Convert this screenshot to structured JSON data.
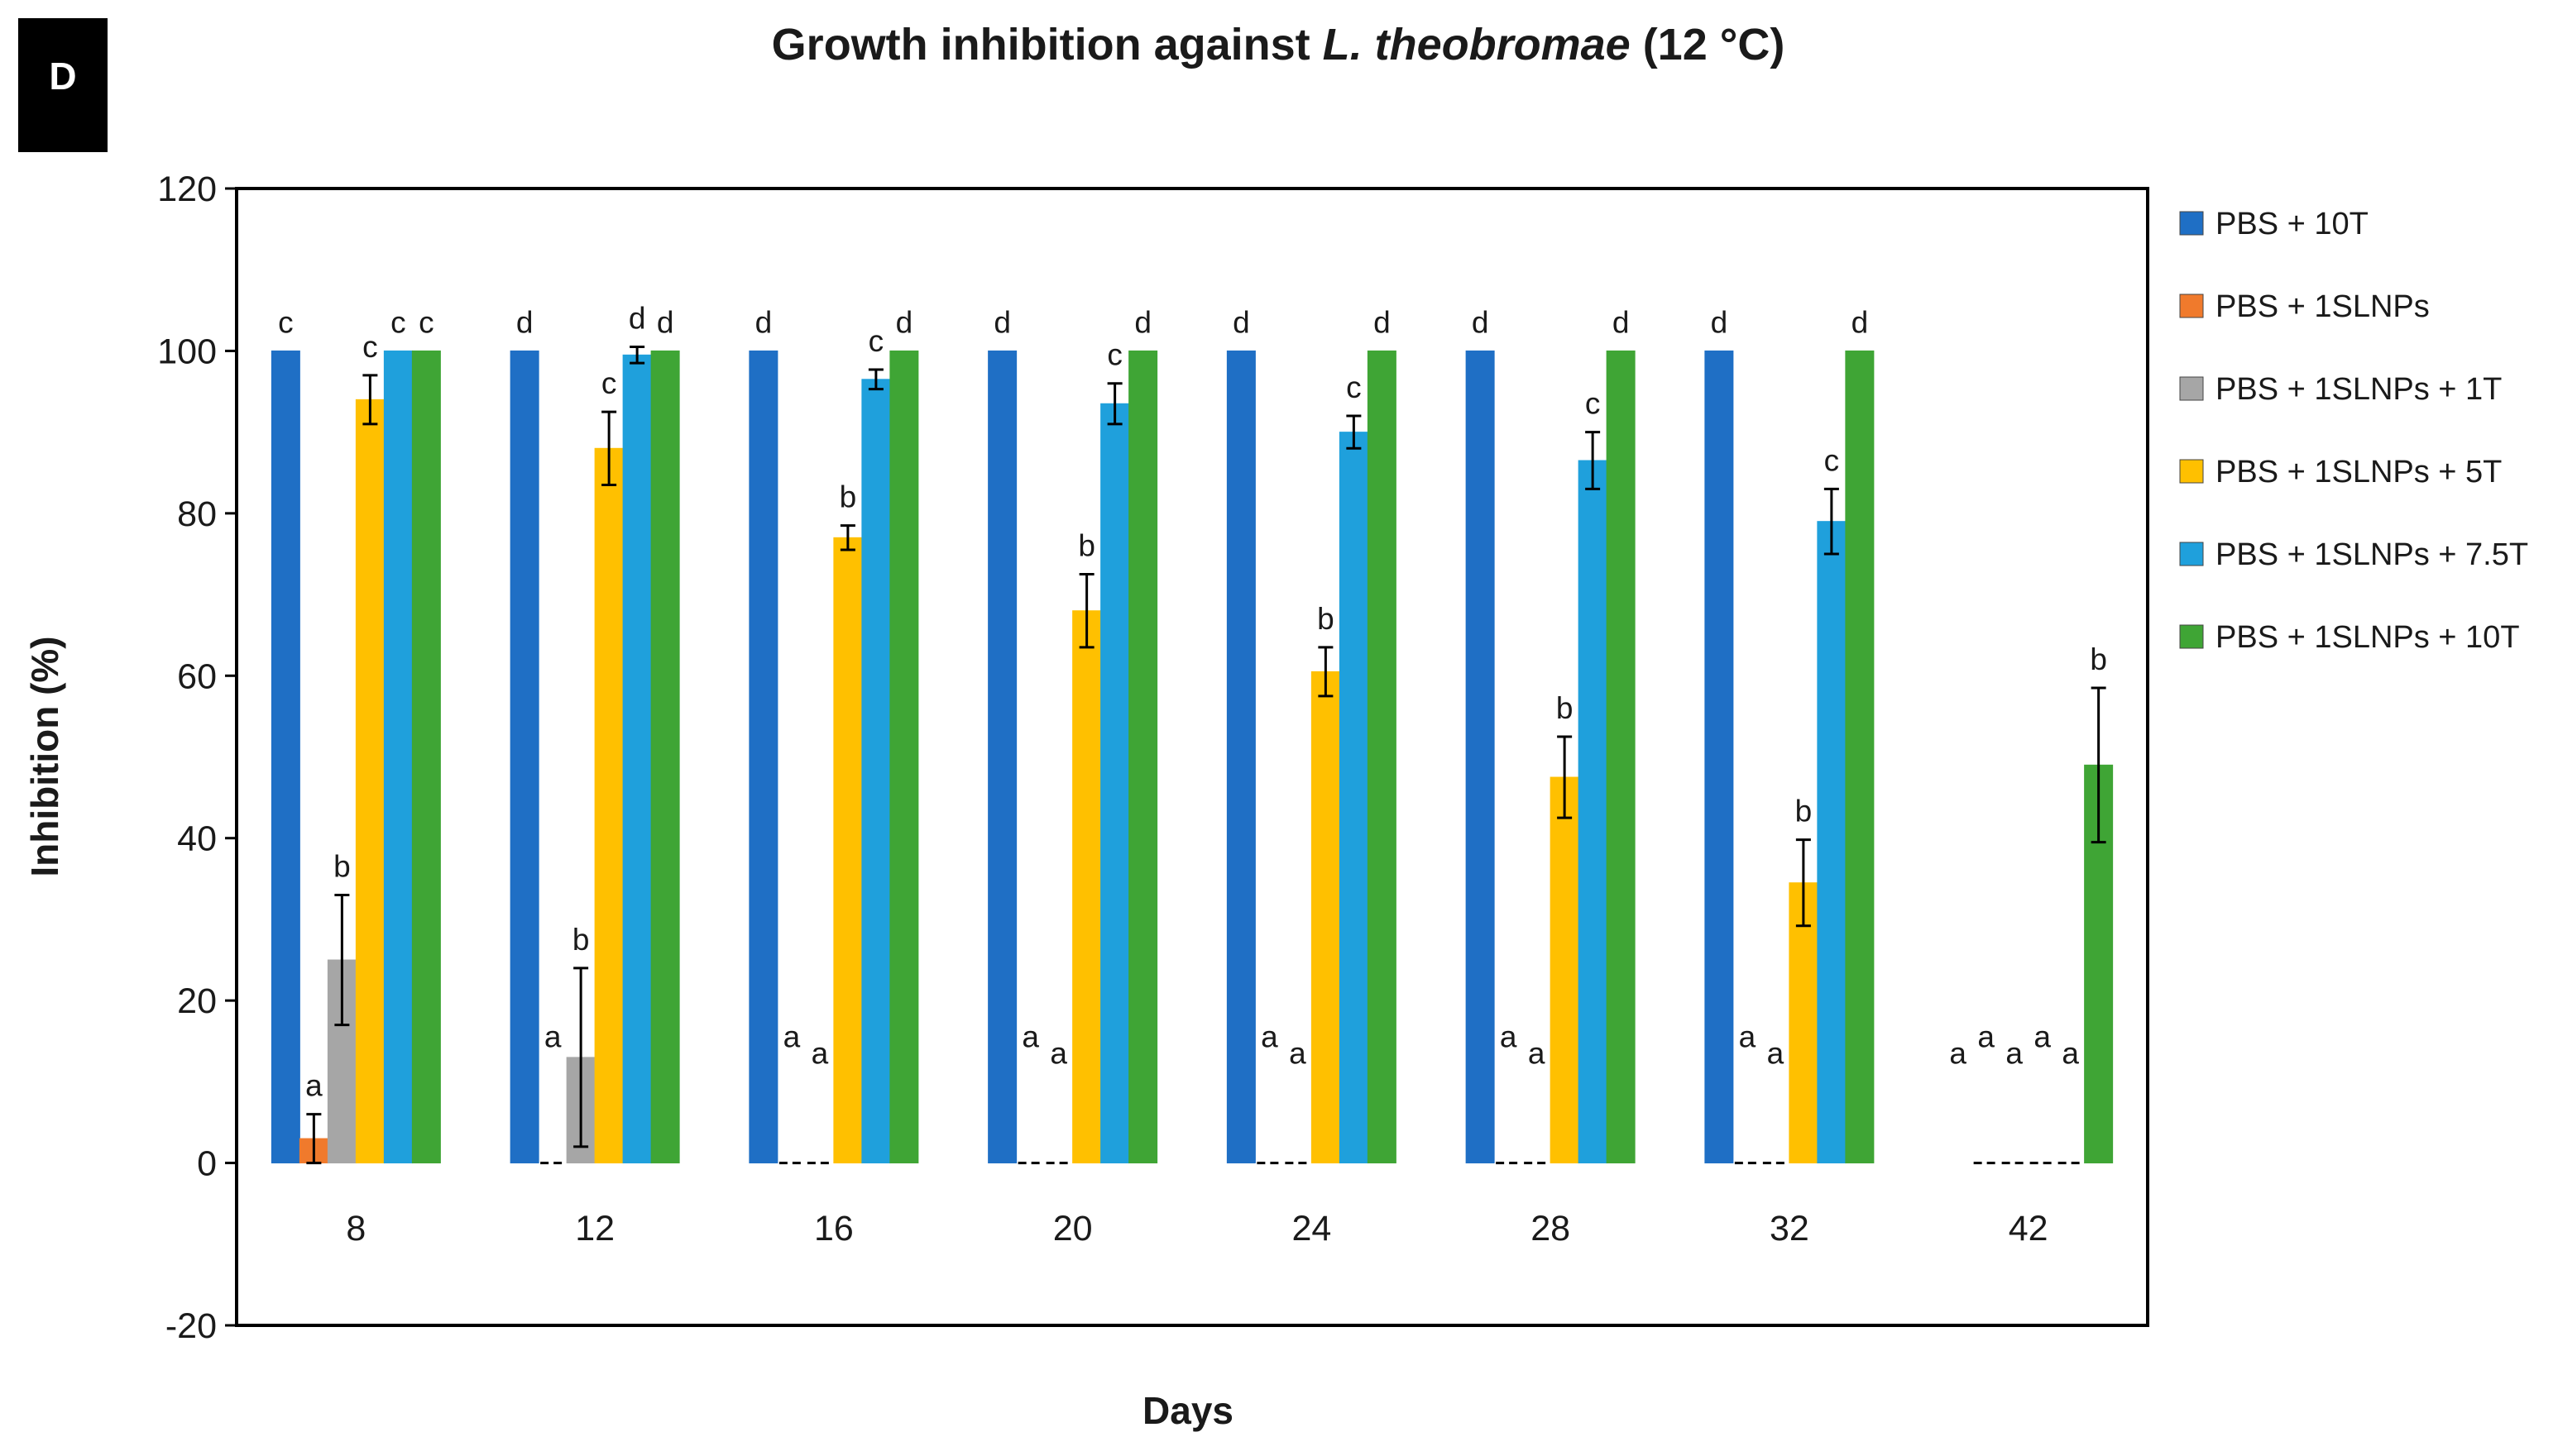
{
  "panel_label": "D",
  "chart_data": {
    "type": "bar",
    "title": "Growth inhibition against L. theobromae (12 °C)",
    "title_parts": {
      "prefix": "Growth inhibition against ",
      "organism": "L. theobromae",
      "suffix": " (12 °C)"
    },
    "xlabel": "Days",
    "ylabel": "Inhibition (%)",
    "ylim": [
      -20,
      120
    ],
    "yticks": [
      -20,
      0,
      20,
      40,
      60,
      80,
      100,
      120
    ],
    "categories": [
      "8",
      "12",
      "16",
      "20",
      "24",
      "28",
      "32",
      "42"
    ],
    "legend_position": "right",
    "series": [
      {
        "name": "PBS + 10T",
        "color": "#1f6fc5",
        "values": [
          100,
          100,
          100,
          100,
          100,
          100,
          100,
          null
        ],
        "errors": [
          0,
          0,
          0,
          0,
          0,
          0,
          0,
          0
        ],
        "letters": [
          "c",
          "d",
          "d",
          "d",
          "d",
          "d",
          "d",
          "a"
        ]
      },
      {
        "name": "PBS + 1SLNPs",
        "color": "#f07a2c",
        "values": [
          3,
          0,
          0,
          0,
          0,
          0,
          0,
          0
        ],
        "errors": [
          3,
          0,
          0,
          0,
          0,
          0,
          0,
          0
        ],
        "letters": [
          "a",
          "a",
          "a",
          "a",
          "a",
          "a",
          "a",
          "a"
        ]
      },
      {
        "name": "PBS + 1SLNPs + 1T",
        "color": "#a6a6a6",
        "values": [
          25,
          13,
          0,
          0,
          0,
          0,
          0,
          0
        ],
        "errors": [
          8,
          11,
          0,
          0,
          0,
          0,
          0,
          0
        ],
        "letters": [
          "b",
          "b",
          "a",
          "a",
          "a",
          "a",
          "a",
          "a"
        ]
      },
      {
        "name": "PBS + 1SLNPs + 5T",
        "color": "#ffc000",
        "values": [
          94,
          88,
          77,
          68,
          60.5,
          47.5,
          34.5,
          0
        ],
        "errors": [
          3,
          4.5,
          1.5,
          4.5,
          3,
          5,
          5.3,
          0
        ],
        "letters": [
          "c",
          "c",
          "b",
          "b",
          "b",
          "b",
          "b",
          "a"
        ]
      },
      {
        "name": "PBS + 1SLNPs + 7.5T",
        "color": "#1fa0dc",
        "values": [
          100,
          99.5,
          96.5,
          93.5,
          90,
          86.5,
          79,
          0
        ],
        "errors": [
          0,
          1,
          1.2,
          2.5,
          2,
          3.5,
          4,
          0
        ],
        "letters": [
          "c",
          "d",
          "c",
          "c",
          "c",
          "c",
          "c",
          "a"
        ]
      },
      {
        "name": "PBS + 1SLNPs + 10T",
        "color": "#3fa535",
        "values": [
          100,
          100,
          100,
          100,
          100,
          100,
          100,
          49
        ],
        "errors": [
          0,
          0,
          0,
          0,
          0,
          0,
          0,
          9.5
        ],
        "letters": [
          "c",
          "d",
          "d",
          "d",
          "d",
          "d",
          "d",
          "b"
        ]
      }
    ]
  }
}
